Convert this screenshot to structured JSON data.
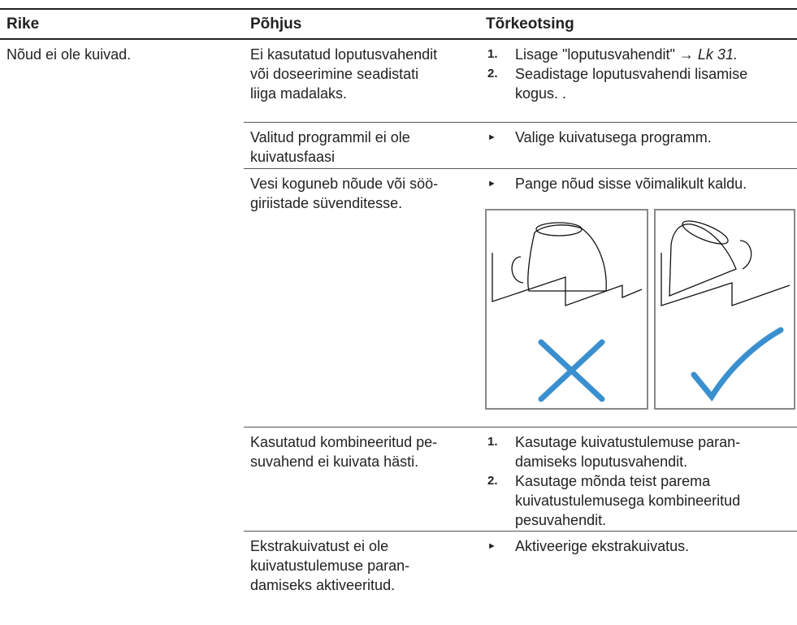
{
  "table": {
    "header": [
      "Rike",
      "Põhjus",
      "Tõrkeotsing"
    ],
    "fault": "Nõud ei ole kuivad.",
    "rows": [
      {
        "cause": [
          "Ei kasutatud loputusvahendit",
          "või doseerimine seadistati",
          "liiga madalaks."
        ],
        "steps": [
          {
            "marker": "1.",
            "lines": [
              "Lisage \"loputusvahendit\" → "
            ],
            "ref": "Lk 31."
          },
          {
            "marker": "2.",
            "lines": [
              "Seadistage loputusvahendi lisamise",
              "kogus. ."
            ]
          }
        ]
      },
      {
        "cause": [
          "Valitud programmil ei ole",
          "kuivatusfaasi"
        ],
        "steps": [
          {
            "marker": "►",
            "lines": [
              "Valige kuivatusega programm."
            ]
          }
        ]
      },
      {
        "cause": [
          "Vesi koguneb nõude või söö-",
          "giriistade süvenditesse."
        ],
        "steps": [
          {
            "marker": "►",
            "lines": [
              "Pange nõud sisse võimalikult kaldu."
            ]
          }
        ]
      },
      {
        "cause": [
          "Kasutatud kombineeritud pe-",
          "suvahend ei kuivata hästi."
        ],
        "steps": [
          {
            "marker": "1.",
            "lines": [
              "Kasutage kuivatustulemuse paran-",
              "damiseks loputusvahendit."
            ]
          },
          {
            "marker": "2.",
            "lines": [
              "Kasutage mõnda teist parema",
              "kuivatustulemusega kombineeritud",
              "pesuvahendit."
            ]
          }
        ]
      },
      {
        "cause": [
          "Ekstrakuivatust ei ole",
          "kuivatustulemuse paran-",
          "damiseks aktiveeritud."
        ],
        "steps": [
          {
            "marker": "►",
            "lines": [
              "Aktiveerige ekstrakuivatus."
            ]
          }
        ]
      }
    ]
  }
}
